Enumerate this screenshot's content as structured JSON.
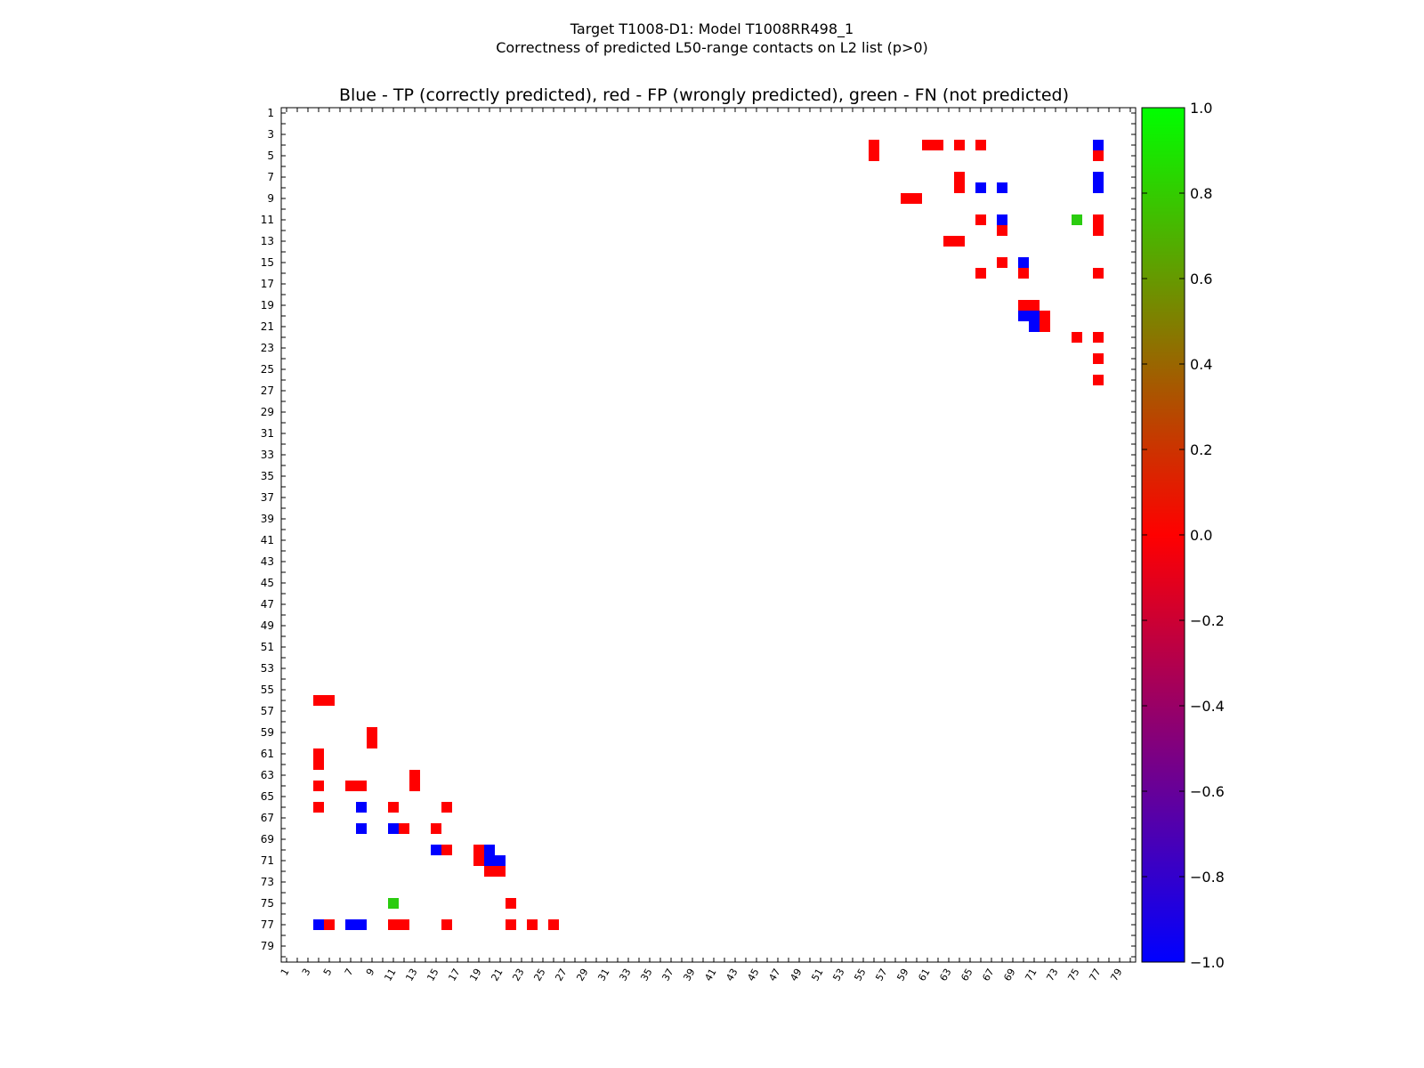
{
  "figure": {
    "title_line1": "Target T1008-D1: Model T1008RR498_1",
    "title_line2": "Correctness of predicted L50-range contacts on L2 list (p>0)",
    "axes_title": "Blue - TP (correctly predicted), red - FP (wrongly predicted), green - FN (not predicted)"
  },
  "chart_data": {
    "type": "heatmap",
    "title": "Blue - TP (correctly predicted), red - FP (wrongly predicted), green - FN (not predicted)",
    "xlabel": "",
    "ylabel": "",
    "xlim": [
      1,
      80
    ],
    "ylim": [
      1,
      80
    ],
    "y_inverted": true,
    "x_tick_labels": [
      "1",
      "3",
      "5",
      "7",
      "9",
      "11",
      "13",
      "15",
      "17",
      "19",
      "21",
      "23",
      "25",
      "27",
      "29",
      "31",
      "33",
      "35",
      "37",
      "39",
      "41",
      "43",
      "45",
      "47",
      "49",
      "51",
      "53",
      "55",
      "57",
      "59",
      "61",
      "63",
      "65",
      "67",
      "69",
      "71",
      "73",
      "75",
      "77",
      "79"
    ],
    "y_tick_labels": [
      "1",
      "3",
      "5",
      "7",
      "9",
      "11",
      "13",
      "15",
      "17",
      "19",
      "21",
      "23",
      "25",
      "27",
      "29",
      "31",
      "33",
      "35",
      "37",
      "39",
      "41",
      "43",
      "45",
      "47",
      "49",
      "51",
      "53",
      "55",
      "57",
      "59",
      "61",
      "63",
      "65",
      "67",
      "69",
      "71",
      "73",
      "75",
      "77",
      "79"
    ],
    "colormap": {
      "name": "red-green-blue correctness scale",
      "range": [
        -1.0,
        1.0
      ],
      "stops": [
        {
          "value": -1.0,
          "color": "#0000ff"
        },
        {
          "value": 0.0,
          "color": "#ff0000"
        },
        {
          "value": 1.0,
          "color": "#00ff00"
        }
      ],
      "tick_labels": [
        "−1.0",
        "−0.8",
        "−0.6",
        "−0.4",
        "−0.2",
        "0.0",
        "0.2",
        "0.4",
        "0.6",
        "0.8",
        "1.0"
      ]
    },
    "category_colors": {
      "TP": "#0000ff",
      "FP": "#ff0000",
      "FN": "#2bcc10"
    },
    "contacts_lower": [
      {
        "i": 4,
        "j": 56,
        "c": "FP"
      },
      {
        "i": 5,
        "j": 56,
        "c": "FP"
      },
      {
        "i": 9,
        "j": 59,
        "c": "FP"
      },
      {
        "i": 9,
        "j": 60,
        "c": "FP"
      },
      {
        "i": 4,
        "j": 61,
        "c": "FP"
      },
      {
        "i": 4,
        "j": 62,
        "c": "FP"
      },
      {
        "i": 4,
        "j": 64,
        "c": "FP"
      },
      {
        "i": 7,
        "j": 64,
        "c": "FP"
      },
      {
        "i": 8,
        "j": 64,
        "c": "FP"
      },
      {
        "i": 13,
        "j": 63,
        "c": "FP"
      },
      {
        "i": 13,
        "j": 64,
        "c": "FP"
      },
      {
        "i": 4,
        "j": 66,
        "c": "FP"
      },
      {
        "i": 8,
        "j": 66,
        "c": "TP"
      },
      {
        "i": 11,
        "j": 66,
        "c": "FP"
      },
      {
        "i": 16,
        "j": 66,
        "c": "FP"
      },
      {
        "i": 8,
        "j": 68,
        "c": "TP"
      },
      {
        "i": 11,
        "j": 68,
        "c": "TP"
      },
      {
        "i": 12,
        "j": 68,
        "c": "FP"
      },
      {
        "i": 15,
        "j": 68,
        "c": "FP"
      },
      {
        "i": 15,
        "j": 70,
        "c": "TP"
      },
      {
        "i": 16,
        "j": 70,
        "c": "FP"
      },
      {
        "i": 19,
        "j": 70,
        "c": "FP"
      },
      {
        "i": 19,
        "j": 71,
        "c": "FP"
      },
      {
        "i": 20,
        "j": 70,
        "c": "TP"
      },
      {
        "i": 20,
        "j": 71,
        "c": "TP"
      },
      {
        "i": 21,
        "j": 71,
        "c": "TP"
      },
      {
        "i": 20,
        "j": 72,
        "c": "FP"
      },
      {
        "i": 21,
        "j": 72,
        "c": "FP"
      },
      {
        "i": 11,
        "j": 75,
        "c": "FN"
      },
      {
        "i": 22,
        "j": 75,
        "c": "FP"
      },
      {
        "i": 4,
        "j": 77,
        "c": "TP"
      },
      {
        "i": 5,
        "j": 77,
        "c": "FP"
      },
      {
        "i": 7,
        "j": 77,
        "c": "TP"
      },
      {
        "i": 8,
        "j": 77,
        "c": "TP"
      },
      {
        "i": 11,
        "j": 77,
        "c": "FP"
      },
      {
        "i": 12,
        "j": 77,
        "c": "FP"
      },
      {
        "i": 16,
        "j": 77,
        "c": "FP"
      },
      {
        "i": 22,
        "j": 77,
        "c": "FP"
      },
      {
        "i": 24,
        "j": 77,
        "c": "FP"
      },
      {
        "i": 26,
        "j": 77,
        "c": "FP"
      }
    ]
  }
}
